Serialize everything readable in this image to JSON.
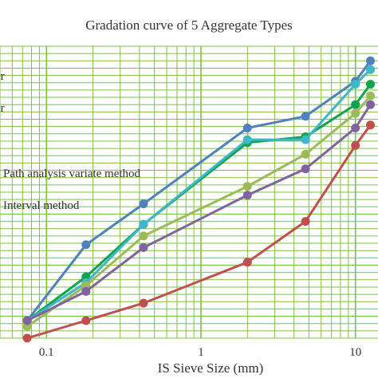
{
  "chart_data": {
    "type": "line",
    "title": "Gradation curve of 5 Aggregate Types",
    "xlabel": "IS Sieve Size (mm)",
    "ylabel": "",
    "x_scale": "log",
    "xlim": [
      0.05,
      14
    ],
    "ylim": [
      0,
      100
    ],
    "x_ticks": [
      "0.1",
      "1",
      "10"
    ],
    "grid": true,
    "grid_color": "#7dc243",
    "legend_labels": [
      "er",
      "er",
      "Path analysis variate method",
      "Interval method"
    ],
    "series": [
      {
        "color": "#4f81bd",
        "x": [
          0.075,
          0.18,
          0.425,
          2.0,
          4.75,
          10,
          12.5
        ],
        "y": [
          6,
          32,
          46,
          72,
          76,
          88,
          95
        ]
      },
      {
        "color": "#0ea44e",
        "x": [
          0.075,
          0.18,
          0.425,
          2.0,
          4.75,
          10,
          12.5
        ],
        "y": [
          6,
          21,
          39,
          67,
          69,
          80,
          87
        ]
      },
      {
        "color": "#3fb7c8",
        "x": [
          0.075,
          0.18,
          0.425,
          2.0,
          4.75,
          10,
          12.5
        ],
        "y": [
          6,
          19,
          39,
          68,
          68,
          87,
          92
        ]
      },
      {
        "color": "#9bbb59",
        "x": [
          0.075,
          0.18,
          0.425,
          2.0,
          4.75,
          10,
          12.5
        ],
        "y": [
          4,
          18,
          35,
          52,
          63,
          77,
          83
        ]
      },
      {
        "color": "#8064a2",
        "x": [
          0.075,
          0.18,
          0.425,
          2.0,
          4.75,
          10,
          12.5
        ],
        "y": [
          6,
          16,
          31,
          49,
          58,
          72,
          80
        ]
      },
      {
        "color": "#c0504d",
        "x": [
          0.075,
          0.18,
          0.425,
          2.0,
          4.75,
          10,
          12.5
        ],
        "y": [
          0,
          6,
          12,
          26,
          40,
          66,
          73
        ]
      }
    ]
  }
}
